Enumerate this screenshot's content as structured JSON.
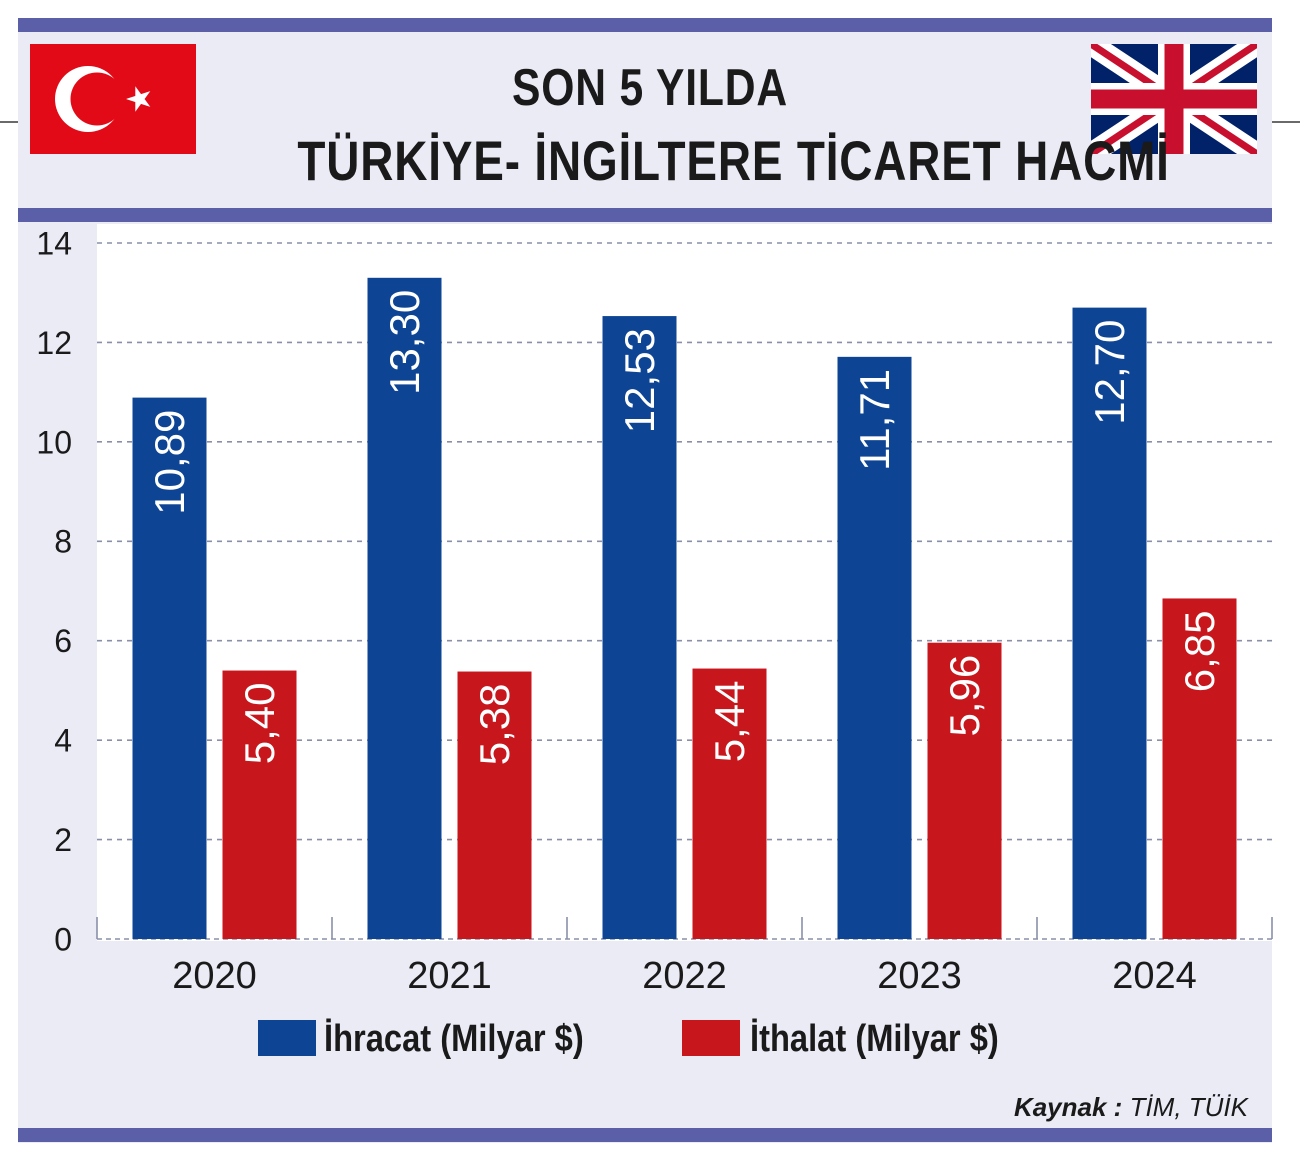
{
  "header": {
    "title_line1": "SON 5 YILDA",
    "title_line2": "TÜRKİYE- İNGİLTERE TİCARET HACMİ"
  },
  "flags": {
    "left": "turkey-flag",
    "right": "united-kingdom-flag"
  },
  "colors": {
    "ihracat": "#0d4494",
    "ithalat": "#c8161d",
    "frame_rule": "#5b5fa8",
    "panel": "#ebebf6"
  },
  "chart_data": {
    "type": "bar",
    "title": "SON 5 YILDA TÜRKİYE- İNGİLTERE TİCARET HACMİ",
    "categories": [
      "2020",
      "2021",
      "2022",
      "2023",
      "2024"
    ],
    "series": [
      {
        "name": "İhracat (Milyar $)",
        "values": [
          10.89,
          13.3,
          12.53,
          11.71,
          12.7
        ],
        "labels": [
          "10,89",
          "13,30",
          "12,53",
          "11,71",
          "12,70"
        ]
      },
      {
        "name": "İthalat (Milyar $)",
        "values": [
          5.4,
          5.38,
          5.44,
          5.96,
          6.85
        ],
        "labels": [
          "5,40",
          "5,38",
          "5,44",
          "5,96",
          "6,85"
        ]
      }
    ],
    "ylim": [
      0,
      14
    ],
    "yticks": [
      0,
      2,
      4,
      6,
      8,
      10,
      12,
      14
    ],
    "grid": "horizontal dotted",
    "legend_position": "bottom"
  },
  "legend": {
    "ihracat_label": "İhracat (Milyar $)",
    "ithalat_label": "İthalat (Milyar $)"
  },
  "source": {
    "prefix": "Kaynak :",
    "value": "TİM, TÜİK"
  }
}
